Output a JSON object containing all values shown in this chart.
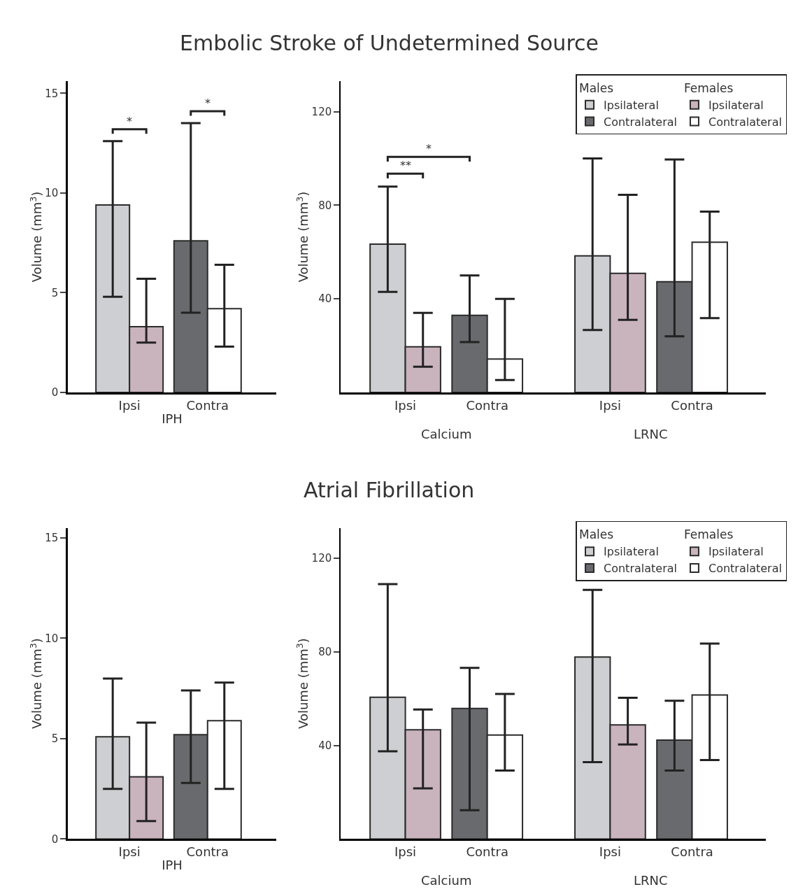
{
  "chart_data": [
    {
      "type": "bar",
      "title": "Embolic Stroke of Undetermined Source",
      "xlabel": "IPH",
      "ylabel": "Volume (mm$^{3}$)",
      "categories": [
        "Ipsi",
        "Contra"
      ],
      "ylim": [
        0,
        15.6
      ],
      "yticks": [
        0,
        5,
        10,
        15
      ],
      "series": [
        {
          "color": "#cdcfd2",
          "values": [
            9.4,
            null
          ],
          "errors": [
            [
              4.8,
              12.6
            ],
            null
          ]
        },
        {
          "color": "#696a6d",
          "values": [
            null,
            7.6
          ],
          "errors": [
            null,
            [
              4.0,
              13.5
            ]
          ]
        },
        {
          "color": "#c9b3bc",
          "values": [
            3.3,
            null
          ],
          "errors": [
            [
              2.5,
              5.7
            ],
            null
          ]
        },
        {
          "color": "#ffffff",
          "values": [
            null,
            4.2
          ],
          "errors": [
            null,
            [
              2.3,
              6.4
            ]
          ]
        }
      ],
      "annotations": [
        "*",
        "*"
      ]
    },
    {
      "type": "bar",
      "ylabel": "Volume (mm$^{3}$)",
      "categories": [
        "Ipsi",
        "Contra",
        "Ipsi",
        "Contra"
      ],
      "ylim": [
        0,
        133
      ],
      "yticks": [
        40,
        80,
        120
      ],
      "legend": "top right",
      "legend_title": [
        "Males",
        "Females"
      ],
      "series": [
        {
          "name": "Ipsilateral",
          "color": "#cdcfd2",
          "values": [
            63.4,
            null,
            58.4,
            null
          ],
          "errors": [
            [
              43,
              88
            ],
            null,
            [
              26.7,
              100
            ],
            null
          ]
        },
        {
          "name": "Contralateral",
          "color": "#696a6d",
          "values": [
            null,
            33,
            null,
            47.3
          ],
          "errors": [
            null,
            [
              21.5,
              50
            ],
            null,
            [
              24,
              99.6
            ]
          ]
        },
        {
          "name": "Ipsilateral",
          "color": "#c9b3bc",
          "values": [
            19.5,
            null,
            50.9,
            null
          ],
          "errors": [
            [
              11,
              34
            ],
            null,
            [
              31,
              84.5
            ],
            null
          ]
        },
        {
          "name": "Contralateral",
          "color": "#ffffff",
          "values": [
            null,
            14.3,
            null,
            64.2
          ],
          "errors": [
            null,
            [
              5.3,
              40
            ],
            null,
            [
              31.8,
              77.3
            ]
          ]
        }
      ],
      "annotations": [
        "**",
        "*",
        "Calcium",
        "LRNC"
      ]
    },
    {
      "type": "bar",
      "xlabel": "IPH",
      "ylabel": "Volume (mm$^{3}$)",
      "categories": [
        "Ipsi",
        "Contra"
      ],
      "ylim": [
        0,
        15.5
      ],
      "yticks": [
        0,
        5,
        10,
        15
      ],
      "series": [
        {
          "color": "#cdcfd2",
          "values": [
            5.1,
            null
          ],
          "errors": [
            [
              2.5,
              8.0
            ],
            null
          ]
        },
        {
          "color": "#696a6d",
          "values": [
            null,
            5.2
          ],
          "errors": [
            null,
            [
              2.8,
              7.4
            ]
          ]
        },
        {
          "color": "#c9b3bc",
          "values": [
            3.1,
            null
          ],
          "errors": [
            [
              0.9,
              5.8
            ],
            null
          ]
        },
        {
          "color": "#ffffff",
          "values": [
            null,
            5.9
          ],
          "errors": [
            null,
            [
              2.5,
              7.8
            ]
          ]
        }
      ]
    },
    {
      "type": "bar",
      "title": "Atrial Fibrillation",
      "ylabel": "Volume (mm$^{3}$)",
      "categories": [
        "Ipsi",
        "Contra",
        "Ipsi",
        "Contra"
      ],
      "ylim": [
        0,
        133
      ],
      "yticks": [
        40,
        80,
        120
      ],
      "legend": "top right",
      "legend_title": [
        "Males",
        "Females"
      ],
      "series": [
        {
          "name": "Ipsilateral",
          "color": "#cdcfd2",
          "values": [
            60.6,
            null,
            77.8,
            null
          ],
          "errors": [
            [
              37.5,
              109
            ],
            null,
            [
              32.9,
              106.5
            ],
            null
          ]
        },
        {
          "name": "Contralateral",
          "color": "#696a6d",
          "values": [
            null,
            55.8,
            null,
            42.3
          ],
          "errors": [
            null,
            [
              12.3,
              73.2
            ],
            null,
            [
              29.3,
              59.1
            ]
          ]
        },
        {
          "name": "Ipsilateral",
          "color": "#c9b3bc",
          "values": [
            46.7,
            null,
            48.8,
            null
          ],
          "errors": [
            [
              21.7,
              55.4
            ],
            null,
            [
              40.4,
              60.4
            ],
            null
          ]
        },
        {
          "name": "Contralateral",
          "color": "#ffffff",
          "values": [
            null,
            44.5,
            null,
            61.6
          ],
          "errors": [
            null,
            [
              29.3,
              62
            ],
            null,
            [
              33.8,
              83.6
            ]
          ]
        }
      ],
      "annotations": [
        "Calcium",
        "LRNC"
      ]
    }
  ]
}
